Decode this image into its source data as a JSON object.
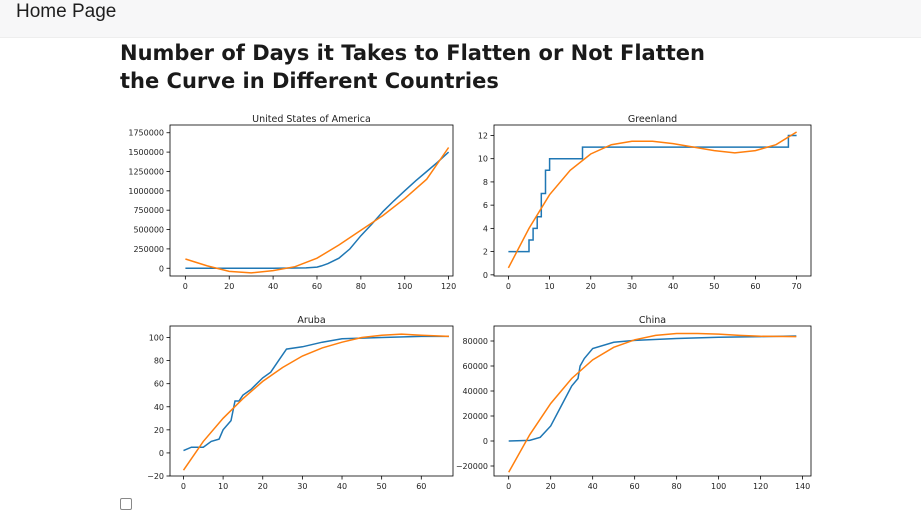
{
  "nav": {
    "home_label": "Home Page"
  },
  "page": {
    "title": "Number of Days it Takes to Flatten or Not Flatten the Curve in Different Countries"
  },
  "colors": {
    "actual": "#1f77b4",
    "fitted": "#ff7f0e",
    "nav_bg": "#f7f7f8"
  },
  "chart_data": [
    {
      "type": "line",
      "title": "United States of America",
      "xlim": [
        -7,
        122
      ],
      "ylim": [
        -100000,
        1850000
      ],
      "xticks": [
        0,
        20,
        40,
        60,
        80,
        100,
        120
      ],
      "yticks": [
        0,
        250000,
        500000,
        750000,
        1000000,
        1250000,
        1500000,
        1750000
      ],
      "series": [
        {
          "x": [
            0,
            20,
            40,
            55,
            60,
            62,
            65,
            70,
            75,
            80,
            85,
            90,
            95,
            100,
            105,
            110,
            115,
            120
          ],
          "y": [
            0,
            0,
            0,
            5000,
            15000,
            30000,
            60000,
            130000,
            250000,
            420000,
            570000,
            730000,
            870000,
            1000000,
            1130000,
            1250000,
            1370000,
            1500000
          ]
        },
        {
          "x": [
            0,
            10,
            20,
            30,
            40,
            50,
            60,
            70,
            80,
            90,
            100,
            110,
            120
          ],
          "y": [
            120000,
            30000,
            -40000,
            -60000,
            -30000,
            20000,
            130000,
            300000,
            490000,
            680000,
            900000,
            1150000,
            1560000
          ]
        }
      ]
    },
    {
      "type": "line",
      "title": "Greenland",
      "xlim": [
        -3.5,
        73.5
      ],
      "ylim": [
        -0.1,
        12.9
      ],
      "xticks": [
        0,
        10,
        20,
        30,
        40,
        50,
        60,
        70
      ],
      "yticks": [
        0,
        2,
        4,
        6,
        8,
        10,
        12
      ],
      "series": [
        {
          "x": [
            0,
            5,
            5,
            6,
            6,
            7,
            7,
            8,
            8,
            9,
            9,
            10,
            10,
            18,
            18,
            68,
            68,
            70
          ],
          "y": [
            2,
            2,
            3,
            3,
            4,
            4,
            5,
            5,
            7,
            7,
            9,
            9,
            10,
            10,
            11,
            11,
            12,
            12
          ]
        },
        {
          "x": [
            0,
            5,
            10,
            15,
            20,
            25,
            30,
            35,
            40,
            45,
            50,
            55,
            60,
            65,
            70
          ],
          "y": [
            0.6,
            4,
            6.9,
            9,
            10.4,
            11.2,
            11.5,
            11.5,
            11.3,
            11,
            10.7,
            10.5,
            10.7,
            11.2,
            12.3
          ]
        }
      ]
    },
    {
      "type": "line",
      "title": "Aruba",
      "xlim": [
        -3.4,
        68
      ],
      "ylim": [
        -20,
        110
      ],
      "xticks": [
        0,
        10,
        20,
        30,
        40,
        50,
        60
      ],
      "yticks": [
        -20,
        0,
        20,
        40,
        60,
        80,
        100
      ],
      "series": [
        {
          "x": [
            0,
            2,
            5,
            7,
            9,
            10,
            12,
            13,
            14,
            15,
            17,
            20,
            22,
            24,
            26,
            30,
            35,
            40,
            50,
            60,
            67
          ],
          "y": [
            2,
            5,
            5,
            10,
            12,
            20,
            28,
            45,
            45,
            50,
            55,
            65,
            70,
            80,
            90,
            92,
            96,
            99,
            100,
            101,
            101
          ]
        },
        {
          "x": [
            0,
            5,
            10,
            15,
            20,
            25,
            30,
            35,
            40,
            45,
            50,
            55,
            60,
            67
          ],
          "y": [
            -15,
            10,
            30,
            47,
            62,
            74,
            84,
            91,
            96,
            100,
            102,
            103,
            102,
            101
          ]
        }
      ]
    },
    {
      "type": "line",
      "title": "China",
      "xlim": [
        -7,
        144
      ],
      "ylim": [
        -28000,
        92000
      ],
      "xticks": [
        0,
        20,
        40,
        60,
        80,
        100,
        120,
        140
      ],
      "yticks": [
        -20000,
        0,
        20000,
        40000,
        60000,
        80000
      ],
      "series": [
        {
          "x": [
            0,
            10,
            15,
            20,
            25,
            30,
            33,
            34,
            36,
            40,
            50,
            60,
            80,
            100,
            120,
            137
          ],
          "y": [
            0,
            500,
            3000,
            12000,
            28000,
            44000,
            50000,
            60000,
            66000,
            74000,
            79000,
            80500,
            82000,
            83000,
            83500,
            84000
          ]
        },
        {
          "x": [
            0,
            10,
            20,
            30,
            40,
            50,
            60,
            70,
            80,
            90,
            100,
            110,
            120,
            137
          ],
          "y": [
            -25000,
            5000,
            30000,
            50000,
            65000,
            75000,
            81000,
            84500,
            86000,
            86000,
            85500,
            84500,
            83800,
            83500
          ]
        }
      ]
    }
  ]
}
